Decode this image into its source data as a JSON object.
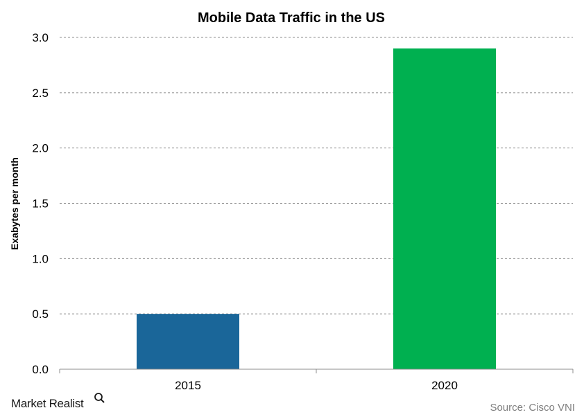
{
  "chart_data": {
    "type": "bar",
    "title": "Mobile Data Traffic in the US",
    "ylabel": "Exabytes per month",
    "xlabel": "",
    "categories": [
      "2015",
      "2020"
    ],
    "values": [
      0.5,
      2.9
    ],
    "colors": [
      "#1a6699",
      "#00b050"
    ],
    "ylim": [
      0,
      3.0
    ],
    "yticks": [
      "0.0",
      "0.5",
      "1.0",
      "1.5",
      "2.0",
      "2.5",
      "3.0"
    ],
    "grid": "horizontal dashed",
    "legend": "none"
  },
  "branding": {
    "logo": "Market Realist",
    "source": "Source: Cisco VNI"
  },
  "icons": {
    "logo_mark": "magnifier-icon"
  }
}
